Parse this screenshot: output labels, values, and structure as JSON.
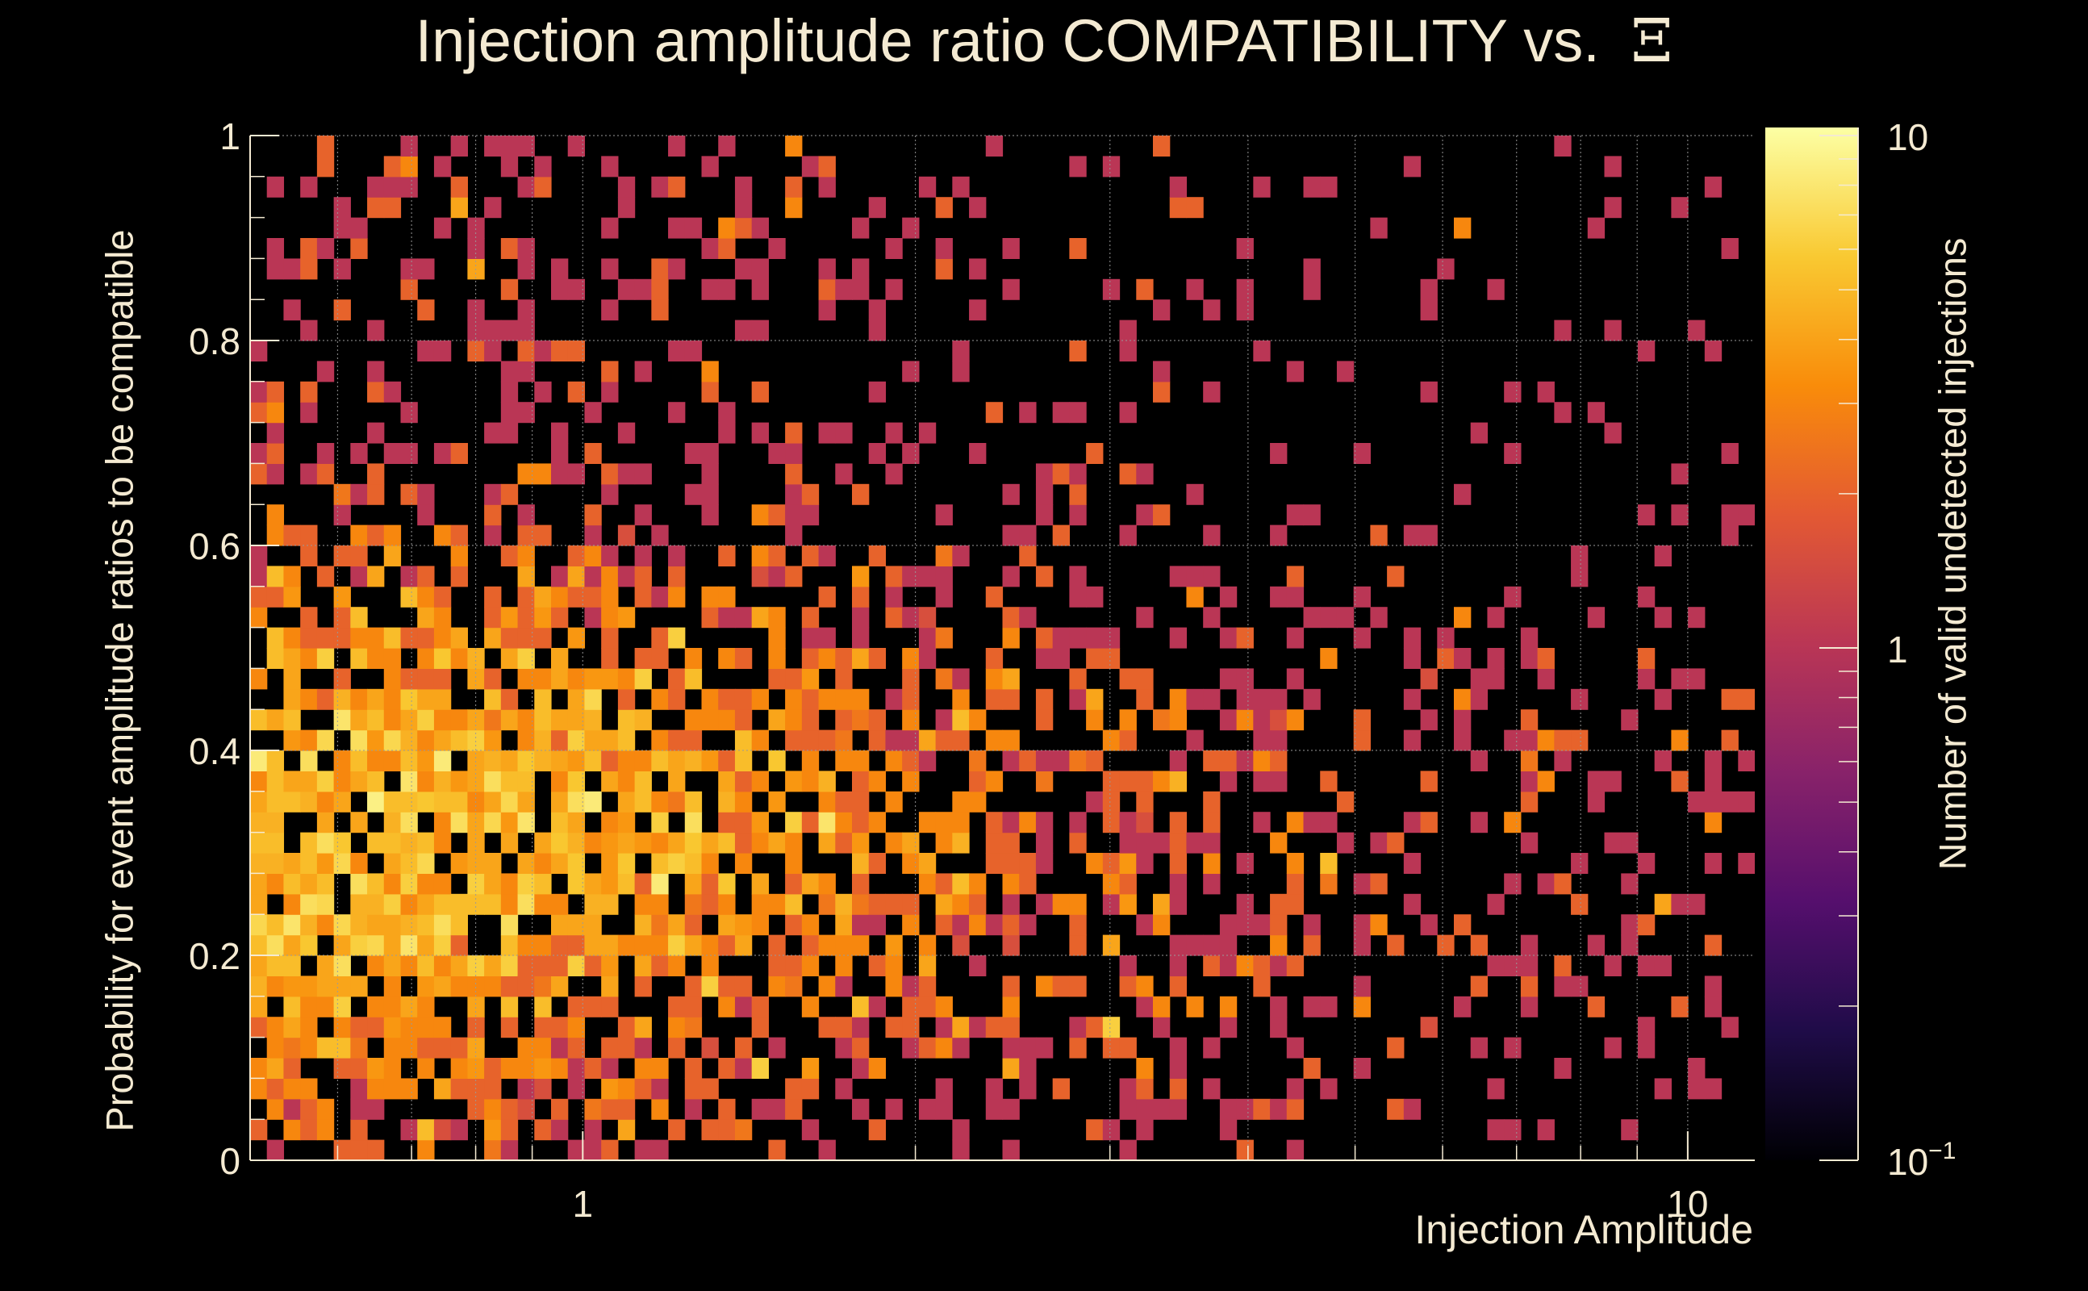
{
  "chart_data": {
    "type": "heatmap",
    "title": "Injection amplitude ratio COMPATIBILITY vs.",
    "title_symbol": "Ξ",
    "xlabel": "Injection Amplitude",
    "ylabel": "Probability for event amplitude ratios to be compatible",
    "zlabel": "Number of valid undetected injections",
    "x_scale": "log",
    "xlim": [
      0.5,
      11.5
    ],
    "x_ticks": [
      {
        "value": 1,
        "label": "1"
      },
      {
        "value": 10,
        "label": "10"
      }
    ],
    "ylim": [
      0,
      1
    ],
    "y_ticks": [
      {
        "value": 0,
        "label": "0"
      },
      {
        "value": 0.2,
        "label": "0.2"
      },
      {
        "value": 0.4,
        "label": "0.4"
      },
      {
        "value": 0.6,
        "label": "0.6"
      },
      {
        "value": 0.8,
        "label": "0.8"
      },
      {
        "value": 1,
        "label": "1"
      }
    ],
    "z_scale": "log",
    "zlim": [
      0.1,
      10
    ],
    "z_ticks": [
      {
        "value": 0.1,
        "label": "10",
        "sup": "−1"
      },
      {
        "value": 1,
        "label": "1"
      },
      {
        "value": 10,
        "label": "10"
      }
    ],
    "bins": {
      "nx": 90,
      "ny": 50
    },
    "grid": true,
    "palette": "inferno-like",
    "density_note": "Counts are 1 to ~7 per bin; density highest for amplitude < 2 and probability 0.15–0.55, falling off toward high amplitude and high probability.",
    "colors": {
      "background": "#000000",
      "text": "#f4ead2",
      "grid": "#9a9a9a",
      "palette_stops": [
        "#000004",
        "#1f0c48",
        "#550f6d",
        "#88226a",
        "#ba3655",
        "#e35933",
        "#f98c0a",
        "#f9c932",
        "#fcffa4"
      ]
    }
  }
}
